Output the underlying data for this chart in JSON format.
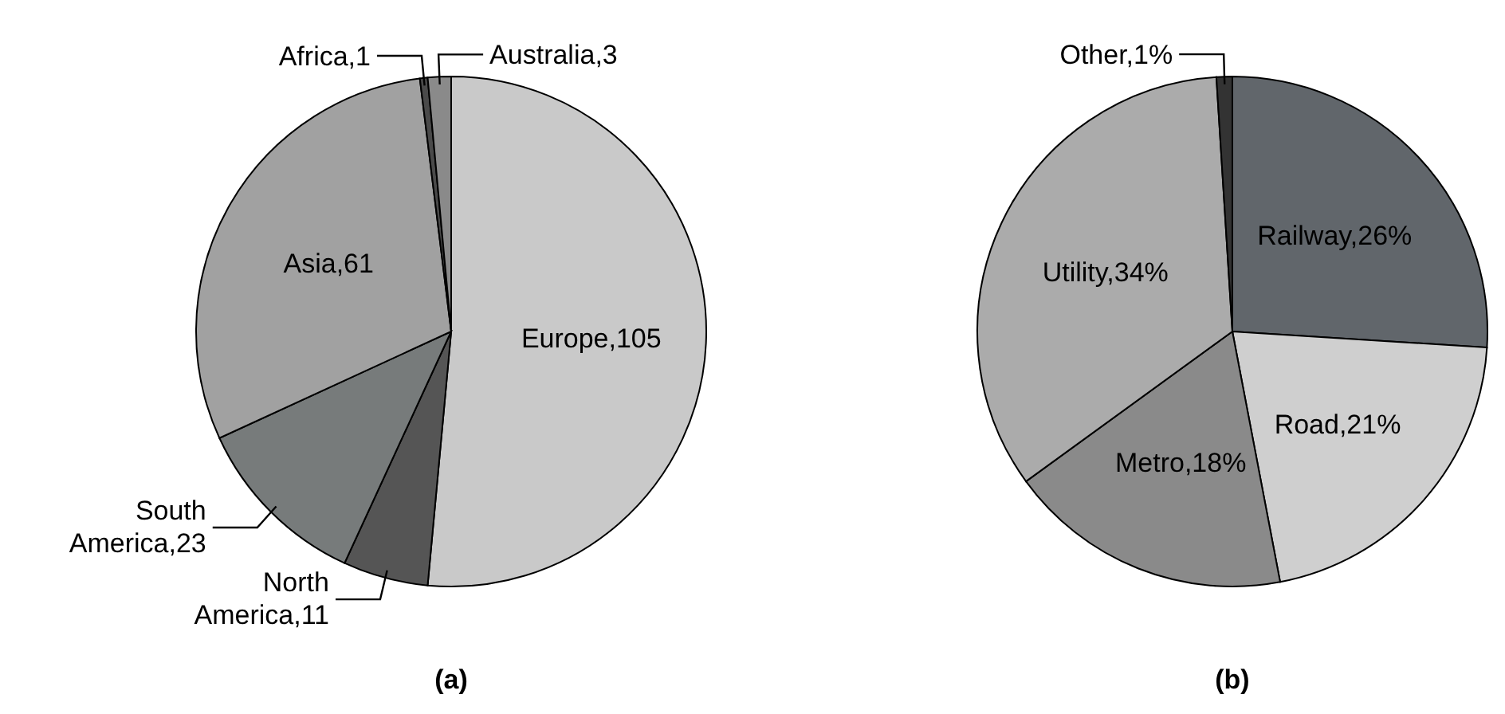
{
  "chart_data": [
    {
      "type": "pie",
      "title": "(a)",
      "categories": [
        "Europe",
        "North America",
        "South America",
        "Asia",
        "Africa",
        "Australia"
      ],
      "values": [
        105,
        11,
        23,
        61,
        1,
        3
      ],
      "value_labels": [
        "105",
        "11",
        "23",
        "61",
        "1",
        "3"
      ],
      "colors": [
        "#c9c9c9",
        "#555555",
        "#777b7b",
        "#a1a1a1",
        "#4a4a4a",
        "#8a8a8a"
      ]
    },
    {
      "type": "pie",
      "title": "(b)",
      "categories": [
        "Railway",
        "Road",
        "Metro",
        "Utility",
        "Other"
      ],
      "values": [
        26,
        21,
        18,
        34,
        1
      ],
      "value_labels": [
        "26%",
        "21%",
        "18%",
        "34%",
        "1%"
      ],
      "colors": [
        "#61666b",
        "#cfcfcf",
        "#8a8a8a",
        "#ababab",
        "#333333"
      ]
    }
  ]
}
